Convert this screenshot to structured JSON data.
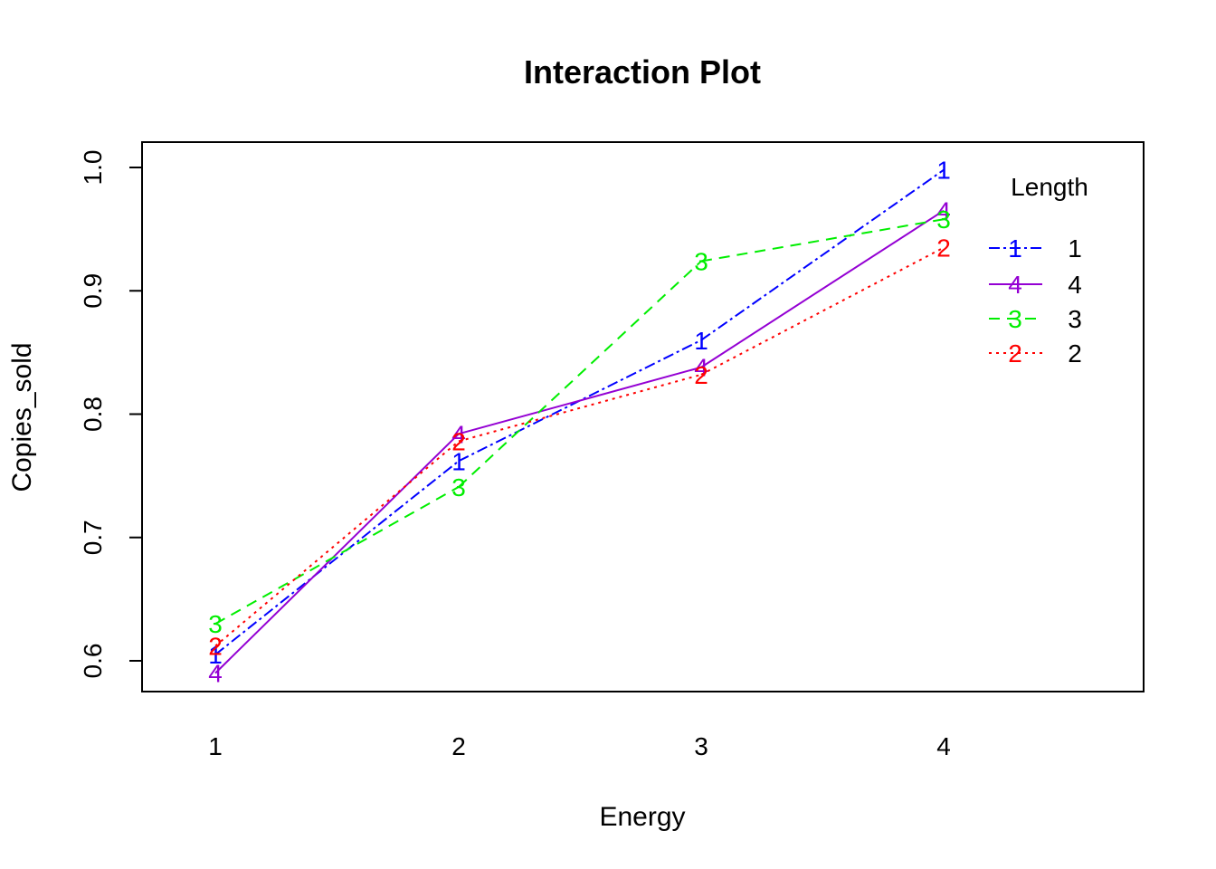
{
  "chart_data": {
    "type": "line",
    "title": "Interaction Plot",
    "xlabel": "Energy",
    "ylabel": "Copies_sold",
    "categories": [
      "1",
      "2",
      "3",
      "4"
    ],
    "ylim": [
      0.575,
      1.02
    ],
    "yticks": [
      0.6,
      0.7,
      0.8,
      0.9,
      1.0
    ],
    "ytick_labels": [
      "0.6",
      "0.7",
      "0.8",
      "0.9",
      "1.0"
    ],
    "grid": false,
    "legend": {
      "title": "Length",
      "position": "top-right"
    },
    "series": [
      {
        "name": "1",
        "symbol": "1",
        "color": "#0000ff",
        "dash": "12,4,3,4",
        "values": [
          0.605,
          0.762,
          0.86,
          0.998
        ]
      },
      {
        "name": "4",
        "symbol": "4",
        "color": "#9400d3",
        "dash": "none",
        "values": [
          0.59,
          0.784,
          0.838,
          0.965
        ]
      },
      {
        "name": "3",
        "symbol": "3",
        "color": "#00ee00",
        "dash": "12,8",
        "values": [
          0.63,
          0.741,
          0.924,
          0.958
        ]
      },
      {
        "name": "2",
        "symbol": "2",
        "color": "#ff0000",
        "dash": "3,5",
        "values": [
          0.612,
          0.778,
          0.832,
          0.935
        ]
      }
    ]
  }
}
